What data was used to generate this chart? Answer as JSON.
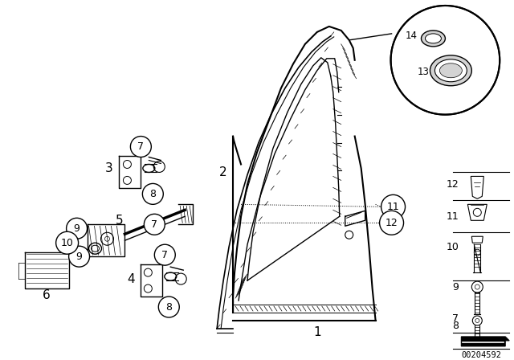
{
  "bg_color": "#ffffff",
  "part_number": "00204592",
  "line_color": "#000000"
}
